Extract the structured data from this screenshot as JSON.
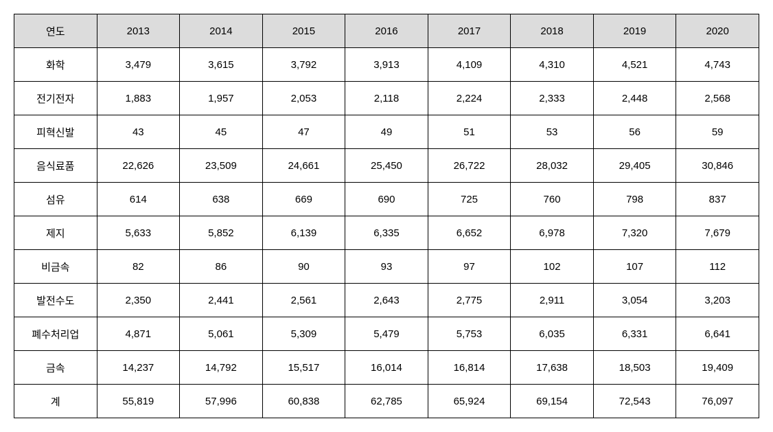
{
  "table": {
    "header_label": "연도",
    "years": [
      "2013",
      "2014",
      "2015",
      "2016",
      "2017",
      "2018",
      "2019",
      "2020"
    ],
    "rows": [
      {
        "label": "화학",
        "values": [
          "3,479",
          "3,615",
          "3,792",
          "3,913",
          "4,109",
          "4,310",
          "4,521",
          "4,743"
        ]
      },
      {
        "label": "전기전자",
        "values": [
          "1,883",
          "1,957",
          "2,053",
          "2,118",
          "2,224",
          "2,333",
          "2,448",
          "2,568"
        ]
      },
      {
        "label": "피혁신발",
        "values": [
          "43",
          "45",
          "47",
          "49",
          "51",
          "53",
          "56",
          "59"
        ]
      },
      {
        "label": "음식료품",
        "values": [
          "22,626",
          "23,509",
          "24,661",
          "25,450",
          "26,722",
          "28,032",
          "29,405",
          "30,846"
        ]
      },
      {
        "label": "섬유",
        "values": [
          "614",
          "638",
          "669",
          "690",
          "725",
          "760",
          "798",
          "837"
        ]
      },
      {
        "label": "제지",
        "values": [
          "5,633",
          "5,852",
          "6,139",
          "6,335",
          "6,652",
          "6,978",
          "7,320",
          "7,679"
        ]
      },
      {
        "label": "비금속",
        "values": [
          "82",
          "86",
          "90",
          "93",
          "97",
          "102",
          "107",
          "112"
        ]
      },
      {
        "label": "발전수도",
        "values": [
          "2,350",
          "2,441",
          "2,561",
          "2,643",
          "2,775",
          "2,911",
          "3,054",
          "3,203"
        ]
      },
      {
        "label": "폐수처리업",
        "values": [
          "4,871",
          "5,061",
          "5,309",
          "5,479",
          "5,753",
          "6,035",
          "6,331",
          "6,641"
        ]
      },
      {
        "label": "금속",
        "values": [
          "14,237",
          "14,792",
          "15,517",
          "16,014",
          "16,814",
          "17,638",
          "18,503",
          "19,409"
        ]
      },
      {
        "label": "계",
        "values": [
          "55,819",
          "57,996",
          "60,838",
          "62,785",
          "65,924",
          "69,154",
          "72,543",
          "76,097"
        ]
      }
    ],
    "styling": {
      "header_bg_color": "#dcdcdc",
      "border_color": "#000000",
      "font_size": 15,
      "cell_padding": "10px 8px",
      "text_align_header": "center",
      "text_align_label": "center",
      "text_align_value": "center"
    }
  }
}
